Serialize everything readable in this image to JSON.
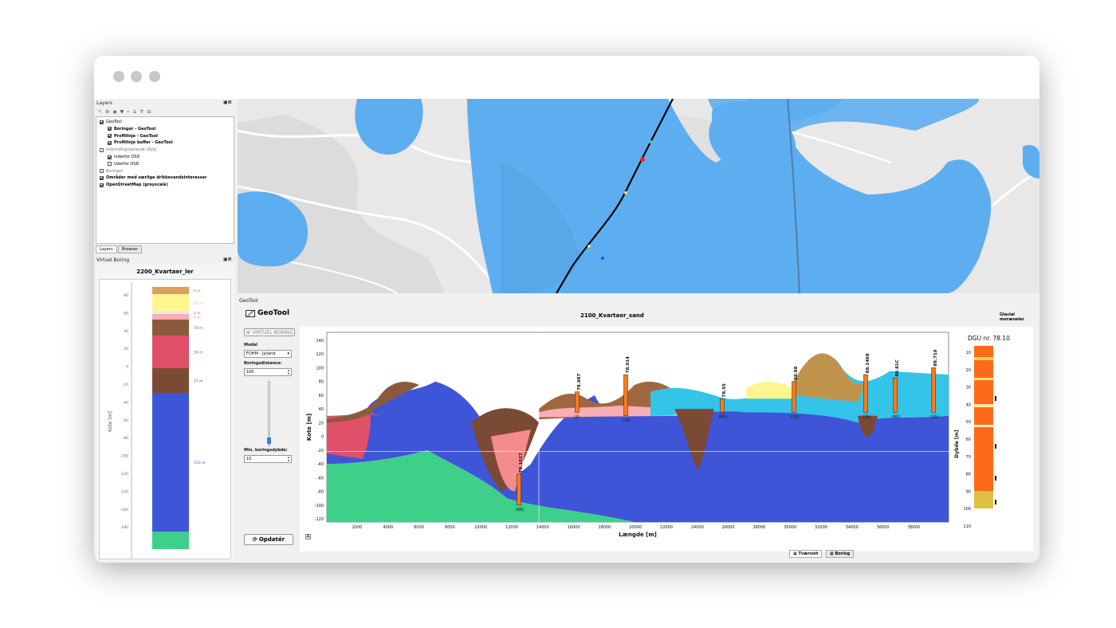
{
  "window": {
    "dots": [
      "close",
      "minimize",
      "zoom"
    ]
  },
  "layers_panel": {
    "title": "Layers",
    "items": [
      {
        "label": "GeoTool",
        "bold": false,
        "italic": false,
        "indent": 0,
        "checked": true
      },
      {
        "label": "Boringer - GeoTool",
        "bold": true,
        "italic": false,
        "indent": 1,
        "checked": true
      },
      {
        "label": "Profillinje - GeoTool",
        "bold": true,
        "italic": false,
        "indent": 1,
        "checked": true
      },
      {
        "label": "Profillinje buffer - GeoTool",
        "bold": true,
        "italic": false,
        "indent": 1,
        "checked": true
      },
      {
        "label": "Indvindingsoplande (Alle)",
        "bold": false,
        "italic": true,
        "indent": 0,
        "checked": false
      },
      {
        "label": "Inderfor OSD",
        "bold": false,
        "italic": false,
        "indent": 1,
        "checked": true
      },
      {
        "label": "Uderfor OSD",
        "bold": false,
        "italic": false,
        "indent": 1,
        "checked": false
      },
      {
        "label": "Boringer",
        "bold": false,
        "italic": true,
        "indent": 0,
        "checked": false
      },
      {
        "label": "Områder med særlige drikkevandsinteresser",
        "bold": true,
        "italic": false,
        "indent": 0,
        "checked": true
      },
      {
        "label": "OpenStreetMap (greyscale)",
        "bold": true,
        "italic": false,
        "indent": 0,
        "checked": true
      }
    ],
    "tabs": [
      "Layers",
      "Browser"
    ]
  },
  "virtuel_boring": {
    "title": "Virtuel Boring",
    "heading": "2200_Kvartaer_ler",
    "ylabel": "Kote [m]",
    "ticks": [
      "80",
      "60",
      "40",
      "20",
      "0",
      "-20",
      "-40",
      "-60",
      "-80",
      "-100",
      "-120",
      "-140",
      "-160",
      "-180"
    ],
    "layers": [
      {
        "label": "8 m",
        "color": "#d7a060",
        "text_color": "#c08030"
      },
      {
        "label": "20 m",
        "color": "#fff68f",
        "text_color": "#d8c850"
      },
      {
        "label": "2 m",
        "color": "#e9e9e9",
        "text_color": "#c06060"
      },
      {
        "label": "4 m",
        "color": "#f7aeb5",
        "text_color": "#e09098"
      },
      {
        "label": "19 m",
        "color": "#8b5a3c",
        "text_color": "#8b5a3c"
      },
      {
        "label": "36 m",
        "color": "#e05068",
        "text_color": "#d04058"
      },
      {
        "label": "27 m",
        "color": "#7b4a35",
        "text_color": "#7b4a35"
      },
      {
        "label": "153 m",
        "color": "#3f55d8",
        "text_color": "#3f55d8"
      },
      {
        "label": "",
        "color": "#3ecf8a",
        "text_color": "#3ecf8a"
      }
    ]
  },
  "geotool": {
    "panel_title": "GeoTool",
    "brand": "GeoTool",
    "profile_title": "2100_Kvartaer_sand",
    "legend_right": "Glacial moræneler",
    "virtuel_boring_btn": "VIRTUEL BORING",
    "model_label": "Model",
    "model_value": "FOHM - Jylland",
    "boringsdistance_label": "Boringsdistance:",
    "boringsdistance_value": "100",
    "min_dybde_label": "Min. boringsdybde:",
    "min_dybde_value": "10",
    "update_btn": "Opdatér",
    "xlabel": "Længde [m]",
    "ylabel": "Kote [m]",
    "xticks": [
      "2000",
      "4000",
      "6000",
      "8000",
      "10000",
      "12000",
      "14000",
      "16000",
      "18000",
      "20000",
      "22000",
      "24000",
      "26000",
      "28000",
      "30000",
      "32000",
      "34000",
      "36000",
      "38000"
    ],
    "yticks": [
      "140",
      "120",
      "100",
      "80",
      "60",
      "40",
      "20",
      "0",
      "-20",
      "-40",
      "-60",
      "-80",
      "-100",
      "-120"
    ],
    "boreholes": [
      {
        "label": "78.1027",
        "depth_label": "(68)"
      },
      {
        "label": "78.987",
        "depth_label": "(4)"
      },
      {
        "label": "78.914",
        "depth_label": "(24)"
      },
      {
        "label": "78.55",
        "depth_label": "(65)"
      },
      {
        "label": "88.88",
        "depth_label": "(33)"
      },
      {
        "label": "88.1468",
        "depth_label": "(25)"
      },
      {
        "label": "88.81C",
        "depth_label": "(60)"
      },
      {
        "label": "88.719",
        "depth_label": "(25)"
      }
    ],
    "dgu_title": "DGU nr. 78.10",
    "dgu_ylabel": "Dybde [m]",
    "dgu_ticks": [
      "10",
      "20",
      "30",
      "40",
      "50",
      "60",
      "70",
      "80",
      "90",
      "100",
      "110"
    ],
    "bottom_tabs": [
      "Tværsnit",
      "Boring"
    ]
  },
  "colors": {
    "water_blue": "#5daef0",
    "map_bg": "#e7e7e7",
    "profile_line": "#000000"
  }
}
